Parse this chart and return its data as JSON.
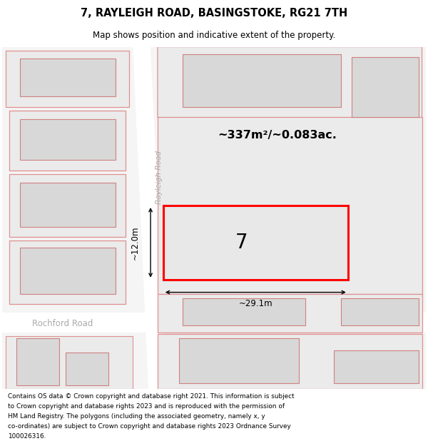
{
  "title": "7, RAYLEIGH ROAD, BASINGSTOKE, RG21 7TH",
  "subtitle": "Map shows position and indicative extent of the property.",
  "footer_lines": [
    "Contains OS data © Crown copyright and database right 2021. This information is subject",
    "to Crown copyright and database rights 2023 and is reproduced with the permission of",
    "HM Land Registry. The polygons (including the associated geometry, namely x, y",
    "co-ordinates) are subject to Crown copyright and database rights 2023 Ordnance Survey",
    "100026316."
  ],
  "area_label": "~337m²/~0.083ac.",
  "width_label": "~29.1m",
  "height_label": "~12.0m",
  "number_label": "7",
  "road_label": "Rayleigh Road",
  "road2_label": "Rochford Road",
  "map_bg": "#f5f5f5",
  "road_color": "#ffffff",
  "parcel_fill": "#ebebeb",
  "parcel_border": "#e09090",
  "building_fill": "#d8d8d8",
  "building_border": "#d08080",
  "prop_fill": "#e8e8e8",
  "prop_border": "#ff0000",
  "dim_color": "#000000",
  "road_label_color": "#aaaaaa",
  "road2_label_color": "#aaaaaa"
}
